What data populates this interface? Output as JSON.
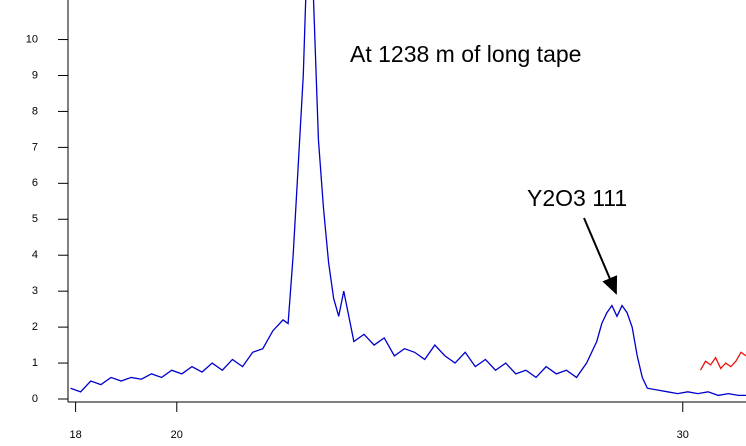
{
  "chart_data": {
    "type": "line",
    "annotations": [
      "At 1238 m of long tape",
      "Y2O3 111"
    ],
    "xlim": [
      17.85,
      31.25
    ],
    "xticks": [
      18,
      20,
      30
    ],
    "ylim": [
      0,
      11.1
    ],
    "yticks": [
      0,
      1,
      2,
      3,
      4,
      5,
      6,
      7,
      8,
      9,
      10
    ],
    "series": [
      {
        "color": "#0000cc",
        "x": [
          17.9,
          18.1,
          18.3,
          18.5,
          18.7,
          18.9,
          19.1,
          19.3,
          19.5,
          19.7,
          19.9,
          20.1,
          20.3,
          20.5,
          20.7,
          20.9,
          21.1,
          21.3,
          21.5,
          21.7,
          21.9,
          22.1,
          22.2,
          22.3,
          22.4,
          22.5,
          22.55,
          22.7,
          22.8,
          22.9,
          23.0,
          23.1,
          23.2,
          23.3,
          23.5,
          23.7,
          23.9,
          24.1,
          24.3,
          24.5,
          24.7,
          24.9,
          25.1,
          25.3,
          25.5,
          25.7,
          25.9,
          26.1,
          26.3,
          26.5,
          26.7,
          26.9,
          27.1,
          27.3,
          27.5,
          27.7,
          27.9,
          28.1,
          28.3,
          28.4,
          28.5,
          28.6,
          28.7,
          28.8,
          28.9,
          29.0,
          29.1,
          29.2,
          29.3,
          29.5,
          29.7,
          29.9,
          30.1,
          30.3,
          30.5,
          30.7,
          30.9,
          31.1,
          31.25
        ],
        "values": [
          0.3,
          0.2,
          0.5,
          0.4,
          0.6,
          0.5,
          0.6,
          0.55,
          0.7,
          0.6,
          0.8,
          0.7,
          0.9,
          0.75,
          1.0,
          0.8,
          1.1,
          0.9,
          1.3,
          1.4,
          1.9,
          2.2,
          2.1,
          4.0,
          6.5,
          9.0,
          11.2,
          11.2,
          7.2,
          5.3,
          3.8,
          2.8,
          2.3,
          3.0,
          1.6,
          1.8,
          1.5,
          1.7,
          1.2,
          1.4,
          1.3,
          1.1,
          1.5,
          1.2,
          1.0,
          1.3,
          0.9,
          1.1,
          0.8,
          1.0,
          0.7,
          0.8,
          0.6,
          0.9,
          0.7,
          0.8,
          0.6,
          1.0,
          1.6,
          2.1,
          2.4,
          2.6,
          2.3,
          2.6,
          2.4,
          2.0,
          1.2,
          0.6,
          0.3,
          0.25,
          0.2,
          0.15,
          0.2,
          0.15,
          0.2,
          0.1,
          0.15,
          0.1,
          0.1
        ]
      },
      {
        "color": "#ee1111",
        "x": [
          30.35,
          30.45,
          30.55,
          30.65,
          30.75,
          30.85,
          30.95,
          31.05,
          31.15,
          31.25
        ],
        "values": [
          0.8,
          1.05,
          0.95,
          1.15,
          0.85,
          1.0,
          0.9,
          1.05,
          1.3,
          1.2
        ]
      }
    ]
  }
}
